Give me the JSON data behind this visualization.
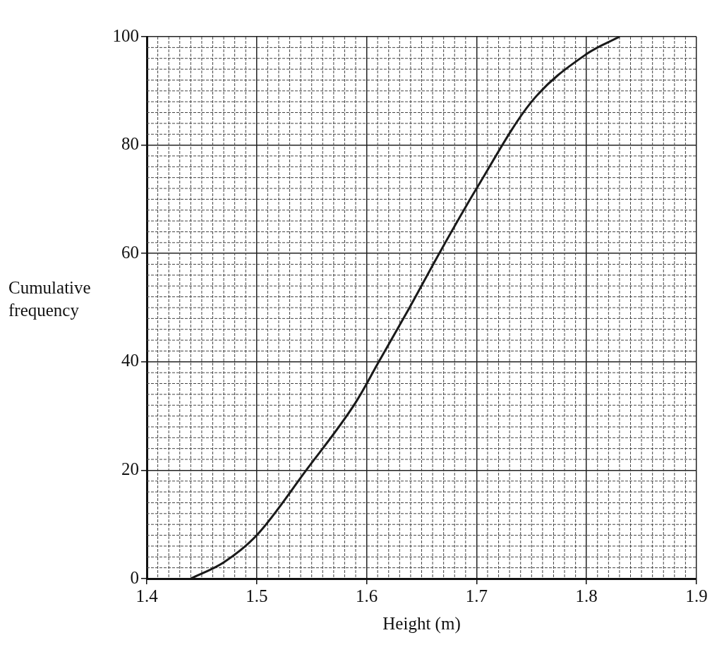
{
  "chart_data": {
    "type": "line",
    "xlabel": "Height (m)",
    "ylabel": "Cumulative frequency",
    "series": [
      {
        "color": "#1a1a1a",
        "x": [
          1.44,
          1.47,
          1.5,
          1.545,
          1.59,
          1.611,
          1.639,
          1.666,
          1.7,
          1.75,
          1.8,
          1.83
        ],
        "values": [
          0,
          3,
          8,
          20,
          32.5,
          40,
          50,
          60,
          72,
          88,
          96.8,
          100
        ]
      }
    ],
    "xlim": [
      1.4,
      1.9
    ],
    "xticks": [
      1.4,
      1.5,
      1.6,
      1.7,
      1.8,
      1.9
    ],
    "ylim": [
      0,
      100
    ],
    "yticks": [
      0,
      20,
      40,
      60,
      80,
      100
    ],
    "grid": true,
    "legend": false,
    "marker": "none",
    "line_style": "solid"
  }
}
